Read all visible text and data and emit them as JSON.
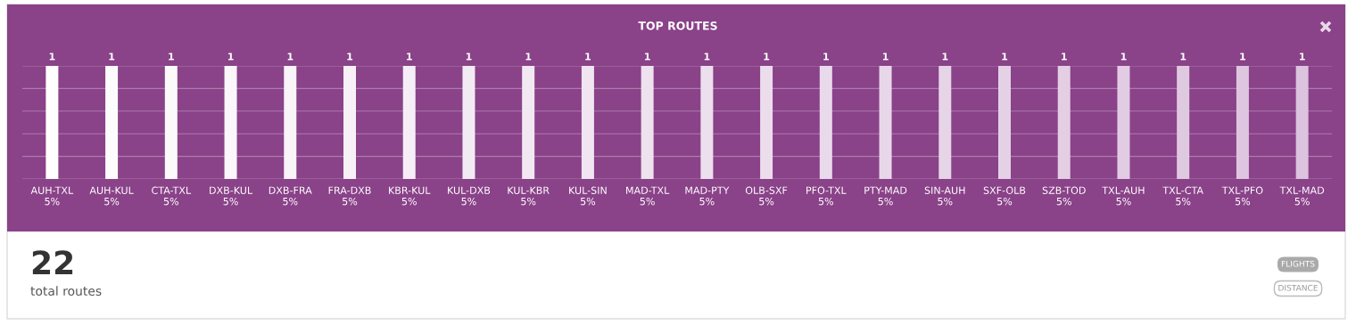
{
  "chart_data": {
    "type": "bar",
    "title": "TOP ROUTES",
    "categories": [
      "AUH-TXL\n5%",
      "AUH-KUL\n5%",
      "CTA-TXL\n5%",
      "DXB-KUL\n5%",
      "DXB-FRA\n5%",
      "FRA-DXB\n5%",
      "KBR-KUL\n5%",
      "KUL-DXB\n5%",
      "KUL-KBR\n5%",
      "KUL-SIN\n5%",
      "MAD-TXL\n5%",
      "MAD-PTY\n5%",
      "OLB-SXF\n5%",
      "PFO-TXL\n5%",
      "PTY-MAD\n5%",
      "SIN-AUH\n5%",
      "SXF-OLB\n5%",
      "SZB-TOD\n5%",
      "TXL-AUH\n5%",
      "TXL-CTA\n5%",
      "TXL-PFO\n5%",
      "TXL-MAD\n5%"
    ],
    "values": [
      1,
      1,
      1,
      1,
      1,
      1,
      1,
      1,
      1,
      1,
      1,
      1,
      1,
      1,
      1,
      1,
      1,
      1,
      1,
      1,
      1,
      1
    ],
    "colors": [
      "#ffffff",
      "#fdfcfd",
      "#fcf9fb",
      "#faf6fa",
      "#f8f4f8",
      "#f7f1f7",
      "#f5eef6",
      "#f3ebf4",
      "#f2e8f2",
      "#f0e5f1",
      "#eee2ef",
      "#ede0ee",
      "#ebddec",
      "#e9daeb",
      "#e8d7e9",
      "#e6d4e7",
      "#e4d1e6",
      "#e3cee4",
      "#e1cce3",
      "#dfc9e1",
      "#dec6e0",
      "#dcc3de"
    ],
    "ylim": [
      0,
      1
    ],
    "yticks": [
      {
        "value": 0,
        "label": null
      },
      {
        "value": 0.2,
        "label": null
      },
      {
        "value": 0.4,
        "label": null
      },
      {
        "value": 0.6,
        "label": null
      },
      {
        "value": 0.8,
        "label": null
      },
      {
        "value": 1,
        "label": null
      }
    ],
    "grid": "y",
    "data_labels": true,
    "tick_labels": "x",
    "annotations": [
      "22",
      "total routes",
      "FLIGHTS",
      "DISTANCE"
    ]
  }
}
